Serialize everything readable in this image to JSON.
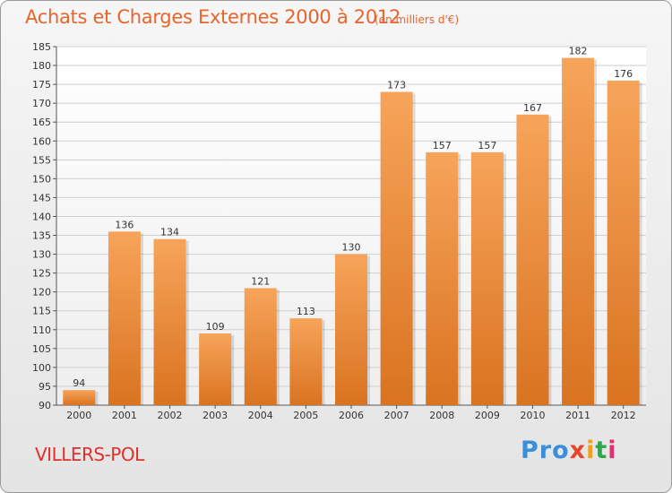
{
  "header": {
    "title": "Achats et Charges Externes 2000 à 2012",
    "subtitle": "(en milliers d'€)"
  },
  "footer": {
    "commune": "VILLERS-POL",
    "logo": [
      "Pro",
      "x",
      "i",
      "t",
      "i"
    ]
  },
  "colors": {
    "title": "#e8642c",
    "commune": "#e0302a",
    "bar_top": "#f7a45a",
    "bar_bottom": "#d97320",
    "grid": "#cfcfcf"
  },
  "chart_data": {
    "type": "bar",
    "categories": [
      "2000",
      "2001",
      "2002",
      "2003",
      "2004",
      "2005",
      "2006",
      "2007",
      "2008",
      "2009",
      "2010",
      "2011",
      "2012"
    ],
    "values": [
      94,
      136,
      134,
      109,
      121,
      113,
      130,
      173,
      157,
      157,
      167,
      182,
      176
    ],
    "title": "Achats et Charges Externes 2000 à 2012",
    "xlabel": "",
    "ylabel": "",
    "ylim": [
      90,
      185
    ],
    "yticks": [
      90,
      95,
      100,
      105,
      110,
      115,
      120,
      125,
      130,
      135,
      140,
      145,
      150,
      155,
      160,
      165,
      170,
      175,
      180,
      185
    ],
    "grid": true,
    "data_labels": true
  }
}
